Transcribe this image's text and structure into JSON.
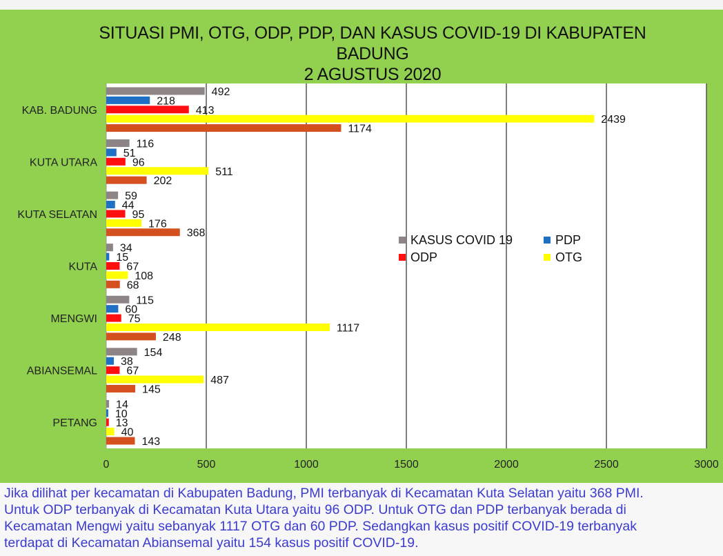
{
  "chart_data": {
    "type": "bar",
    "orientation": "horizontal",
    "title_lines": [
      "SITUASI PMI, OTG, ODP, PDP, DAN KASUS COVID-19 DI KABUPATEN",
      "BADUNG",
      "2 AGUSTUS 2020"
    ],
    "categories": [
      "KAB. BADUNG",
      "KUTA UTARA",
      "KUTA SELATAN",
      "KUTA",
      "MENGWI",
      "ABIANSEMAL",
      "PETANG"
    ],
    "series": [
      {
        "name": "KASUS COVID 19",
        "color": "#8c8485",
        "values": [
          492,
          116,
          59,
          34,
          115,
          154,
          14
        ]
      },
      {
        "name": "PDP",
        "color": "#1f6fc4",
        "values": [
          218,
          51,
          44,
          15,
          60,
          38,
          10
        ]
      },
      {
        "name": "ODP",
        "color": "#ff0f0f",
        "values": [
          413,
          96,
          95,
          67,
          75,
          67,
          13
        ]
      },
      {
        "name": "OTG",
        "color": "#ffff00",
        "values": [
          2439,
          511,
          176,
          108,
          1117,
          487,
          40
        ]
      },
      {
        "name": "",
        "color": "#d4501e",
        "values": [
          1174,
          202,
          368,
          68,
          248,
          145,
          143
        ]
      }
    ],
    "xlim": [
      0,
      3000
    ],
    "xticks": [
      0,
      500,
      1000,
      1500,
      2000,
      2500,
      3000
    ],
    "grid": true,
    "legend_position": "middle-right"
  },
  "caption_lines": [
    "Jika dilihat per kecamatan di Kabupaten Badung, PMI terbanyak di Kecamatan Kuta Selatan yaitu 368 PMI.",
    "Untuk ODP terbanyak di Kecamatan Kuta Utara yaitu 96 ODP. Untuk OTG dan PDP terbanyak berada di",
    "Kecamatan Mengwi yaitu sebanyak 1117 OTG dan 60 PDP. Sedangkan  kasus positif COVID-19 terbanyak",
    "terdapat di Kecamatan Abiansemal yaitu 154 kasus positif COVID-19."
  ]
}
